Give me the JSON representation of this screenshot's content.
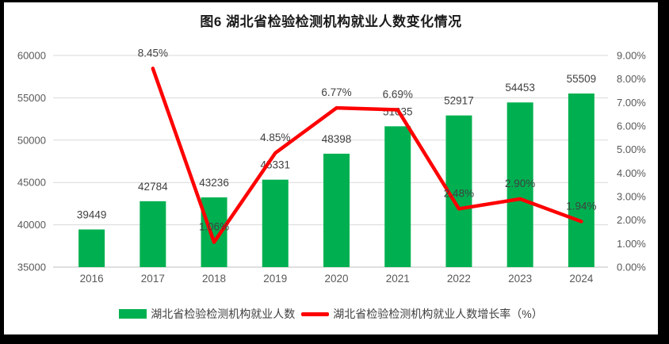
{
  "title": "图6  湖北省检验检测机构就业人数变化情况",
  "colors": {
    "bar": "#00B050",
    "line": "#FF0000",
    "grid": "#D9D9D9",
    "axis_line": "#BFBFBF",
    "axis_text": "#595959",
    "data_label": "#404040",
    "title_text": "#1A1A1A",
    "border": "#000000",
    "background": "#FFFFFF"
  },
  "legend": {
    "bar_label": "湖北省检验检测机构就业人数",
    "line_label": "湖北省检验检测机构就业人数增长率（%）"
  },
  "chart_data": {
    "type": "combo (bar + line)",
    "title": "图6  湖北省检验检测机构就业人数变化情况",
    "categories": [
      "2016",
      "2017",
      "2018",
      "2019",
      "2020",
      "2021",
      "2022",
      "2023",
      "2024"
    ],
    "series": [
      {
        "name": "湖北省检验检测机构就业人数",
        "type": "bar",
        "axis": "left",
        "color": "#00B050",
        "values": [
          39449,
          42784,
          43236,
          45331,
          48398,
          51635,
          52917,
          54453,
          55509
        ],
        "labels": [
          "39449",
          "42784",
          "43236",
          "45331",
          "48398",
          "51635",
          "52917",
          "54453",
          "55509"
        ]
      },
      {
        "name": "湖北省检验检测机构就业人数增长率（%）",
        "type": "line",
        "axis": "right",
        "color": "#FF0000",
        "values": [
          null,
          8.45,
          1.06,
          4.85,
          6.77,
          6.69,
          2.48,
          2.9,
          1.94
        ],
        "labels": [
          null,
          "8.45%",
          "1.06%",
          "4.85%",
          "6.77%",
          "6.69%",
          "2.48%",
          "2.90%",
          "1.94%"
        ]
      }
    ],
    "left_axis": {
      "min": 35000,
      "max": 60000,
      "ticks": [
        "35000",
        "40000",
        "45000",
        "50000",
        "55000",
        "60000"
      ]
    },
    "right_axis": {
      "min": 0,
      "max": 9,
      "ticks": [
        "0.00%",
        "1.00%",
        "2.00%",
        "3.00%",
        "4.00%",
        "5.00%",
        "6.00%",
        "7.00%",
        "8.00%",
        "9.00%"
      ]
    },
    "grid": true,
    "legend_position": "bottom"
  }
}
